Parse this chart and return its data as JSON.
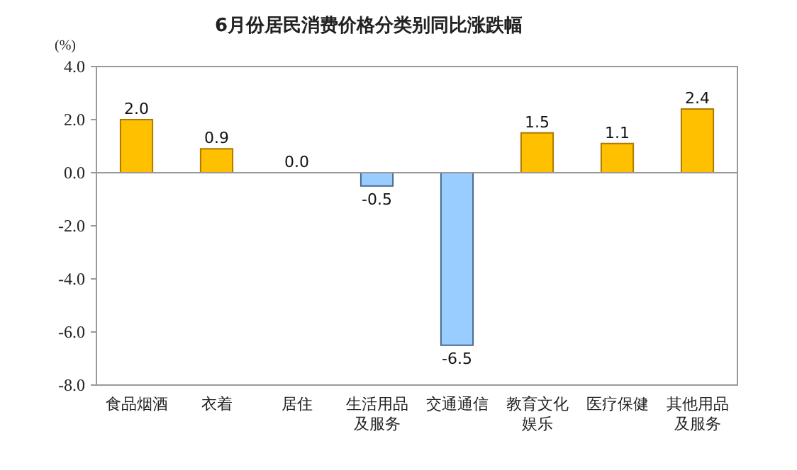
{
  "chart_data": {
    "type": "bar",
    "title": "6月份居民消费价格分类别同比涨跌幅",
    "ylabel": "(%)",
    "categories": [
      "食品烟酒",
      "衣着",
      "居住",
      "生活用品及服务",
      "交通通信",
      "教育文化娱乐",
      "医疗保健",
      "其他用品及服务"
    ],
    "values": [
      2.0,
      0.9,
      0.0,
      -0.5,
      -6.5,
      1.5,
      1.1,
      2.4
    ],
    "value_labels": [
      "2.0",
      "0.9",
      "0.0",
      "-0.5",
      "-6.5",
      "1.5",
      "1.1",
      "2.4"
    ],
    "colors": [
      "#ffc000",
      "#ffc000",
      "#ffc000",
      "#99ccff",
      "#99ccff",
      "#ffc000",
      "#ffc000",
      "#ffc000"
    ],
    "ylim": [
      -8,
      4
    ],
    "yticks": [
      {
        "value": 4,
        "label": "4.0"
      },
      {
        "value": 2,
        "label": "2.0"
      },
      {
        "value": 0,
        "label": "0.0"
      },
      {
        "value": -2,
        "label": "-2.0"
      },
      {
        "value": -4,
        "label": "-4.0"
      },
      {
        "value": -6,
        "label": "-6.0"
      },
      {
        "value": -8,
        "label": "-8.0"
      }
    ],
    "data_labels": true
  }
}
